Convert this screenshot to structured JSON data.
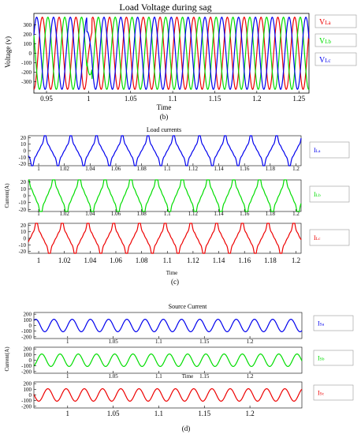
{
  "colors": {
    "phase_a": "#0000ee",
    "phase_b": "#00dd00",
    "phase_c": "#ee0000",
    "red": "#ee0000",
    "green": "#00dd00",
    "blue": "#0000ee"
  },
  "chart_data": [
    {
      "type": "line",
      "title": "Load Voltage during sag",
      "xlabel": "Time",
      "ylabel": "Voltage (v)",
      "caption": "(b)",
      "xlim": [
        0.935,
        1.262
      ],
      "ylim": [
        -420,
        420
      ],
      "xticks": [
        0.95,
        1,
        1.05,
        1.1,
        1.15,
        1.2,
        1.25
      ],
      "xtick_labels": [
        "0.95",
        "1",
        "1.05",
        "1.1",
        "1.15",
        "1.2",
        "1.25"
      ],
      "yticks": [
        -300,
        -200,
        -100,
        0,
        100,
        200,
        300
      ],
      "ytick_labels": [
        "-300",
        "-200",
        "-100",
        "0",
        "100",
        "200",
        "300"
      ],
      "series": [
        {
          "name": "VLa",
          "label_main": "V",
          "label_sub": "La",
          "color": "red",
          "waveform": "sine",
          "amplitude": 380,
          "frequency_hz": 50,
          "phase_deg": 0,
          "sag": {
            "start": 0.998,
            "end": 1.004,
            "factor": 0.6
          }
        },
        {
          "name": "VLb",
          "label_main": "V",
          "label_sub": "Lb",
          "color": "green",
          "waveform": "sine",
          "amplitude": 380,
          "frequency_hz": 50,
          "phase_deg": -120,
          "sag": {
            "start": 0.998,
            "end": 1.004,
            "factor": 0.6
          }
        },
        {
          "name": "VLc",
          "label_main": "V",
          "label_sub": "Lc",
          "color": "blue",
          "waveform": "sine",
          "amplitude": 380,
          "frequency_hz": 50,
          "phase_deg": 120,
          "sag": {
            "start": 0.998,
            "end": 1.004,
            "factor": 0.6
          }
        }
      ]
    },
    {
      "type": "line",
      "title": "Load currents",
      "xlabel": "Time",
      "ylabel": "Current(A)",
      "caption": "(c)",
      "xlim": [
        0.992,
        1.204
      ],
      "ylim": [
        -23,
        23
      ],
      "xticks": [
        1,
        1.02,
        1.04,
        1.06,
        1.08,
        1.1,
        1.12,
        1.14,
        1.16,
        1.18,
        1.2
      ],
      "xtick_labels_top": [
        "1",
        "1.02",
        "1.04",
        "1.06",
        "1.08",
        "1.1",
        "1.12",
        "1.14",
        "1.16",
        "1.18",
        "1.2"
      ],
      "xtick_labels_mid": [
        "1",
        "1.02",
        "1.04",
        "1.06",
        "1.08",
        "1.1",
        "1.12",
        "1.14",
        "1.16",
        "1.18",
        "1.2"
      ],
      "xtick_labels_bottom": [
        "1",
        "1.02",
        "1.04",
        "1.06",
        "1.08",
        "1.1",
        "1.12",
        "1.14",
        "1.16",
        "1.18",
        "1.2"
      ],
      "yticks": [
        -20,
        -10,
        0,
        10,
        20
      ],
      "ytick_labels": [
        "-20",
        "-10",
        "0",
        "10",
        "20"
      ],
      "series": [
        {
          "name": "ILa",
          "label_main": "I",
          "label_sub": "La",
          "color": "blue",
          "waveform": "nonlinear",
          "amplitude": 17,
          "frequency_hz": 50,
          "phase_deg": 0
        },
        {
          "name": "ILb",
          "label_main": "I",
          "label_sub": "Lb",
          "color": "green",
          "waveform": "nonlinear",
          "amplitude": 20,
          "frequency_hz": 50,
          "phase_deg": -120
        },
        {
          "name": "ILc",
          "label_main": "I",
          "label_sub": "Lc",
          "color": "red",
          "waveform": "nonlinear",
          "amplitude": 18,
          "frequency_hz": 50,
          "phase_deg": 120
        }
      ]
    },
    {
      "type": "line",
      "title": "Source Current",
      "xlabel": "Time",
      "ylabel": "Current(A)",
      "caption": "(d)",
      "xlim": [
        0.963,
        1.257
      ],
      "ylim": [
        -230,
        230
      ],
      "xticks": [
        1,
        1.05,
        1.1,
        1.15,
        1.2
      ],
      "xtick_labels": [
        "1",
        "1.05",
        "1.1",
        "1.15",
        "1.2"
      ],
      "yticks": [
        -200,
        -100,
        0,
        100,
        200
      ],
      "ytick_labels": [
        "-200",
        "-100",
        "0",
        "100",
        "200"
      ],
      "series": [
        {
          "name": "ISa",
          "label_main": "I",
          "label_sub": "Sa",
          "color": "blue",
          "waveform": "sine",
          "amplitude": 110,
          "frequency_hz": 50,
          "phase_deg": 0
        },
        {
          "name": "ISb",
          "label_main": "I",
          "label_sub": "Sb",
          "color": "green",
          "waveform": "sine",
          "amplitude": 110,
          "frequency_hz": 50,
          "phase_deg": -120
        },
        {
          "name": "ISc",
          "label_main": "I",
          "label_sub": "Sc",
          "color": "red",
          "waveform": "sine",
          "amplitude": 110,
          "frequency_hz": 50,
          "phase_deg": 120
        }
      ]
    }
  ]
}
